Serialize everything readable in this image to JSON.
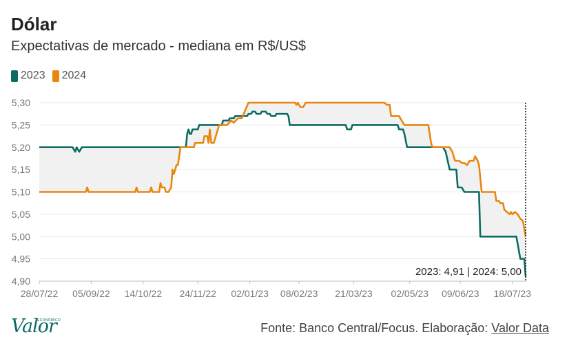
{
  "header": {
    "title": "Dólar",
    "subtitle": "Expectativas de mercado - mediana em R$/US$"
  },
  "legend": [
    {
      "label": "2023",
      "color": "#0c6b63"
    },
    {
      "label": "2024",
      "color": "#e8860e"
    }
  ],
  "footer": {
    "source_prefix": "Fonte: Banco Central/Focus. Elaboração: ",
    "source_link": "Valor Data",
    "logo_text": "Valor",
    "logo_sup": "ECONÔMICO"
  },
  "chart_data": {
    "type": "line",
    "title": "Dólar",
    "subtitle": "Expectativas de mercado - mediana em R$/US$",
    "xlabel": "",
    "ylabel": "",
    "ylim": [
      4.9,
      5.3
    ],
    "yticks": [
      "5,30",
      "5,25",
      "5,20",
      "5,15",
      "5,10",
      "5,05",
      "5,00",
      "4,95",
      "4,90"
    ],
    "xticks": [
      "28/07/22",
      "05/09/22",
      "14/10/22",
      "24/11/22",
      "02/01/23",
      "08/02/23",
      "21/03/23",
      "02/05/23",
      "09/06/23",
      "18/07/23"
    ],
    "grid": true,
    "legend_position": "top-left",
    "annotation": "2023: 4,91 | 2024: 5,00",
    "x_start": "2022-07-28",
    "x_end": "2023-07-28",
    "series": [
      {
        "name": "2023",
        "color": "#0c6b63",
        "points": [
          [
            "2022-07-28",
            5.2
          ],
          [
            "2022-08-22",
            5.2
          ],
          [
            "2022-08-24",
            5.19
          ],
          [
            "2022-08-25",
            5.2
          ],
          [
            "2022-08-27",
            5.19
          ],
          [
            "2022-08-29",
            5.2
          ],
          [
            "2022-11-15",
            5.2
          ],
          [
            "2022-11-16",
            5.23
          ],
          [
            "2022-11-17",
            5.24
          ],
          [
            "2022-11-18",
            5.23
          ],
          [
            "2022-11-19",
            5.23
          ],
          [
            "2022-11-20",
            5.24
          ],
          [
            "2022-11-24",
            5.24
          ],
          [
            "2022-11-25",
            5.25
          ],
          [
            "2022-12-12",
            5.25
          ],
          [
            "2022-12-13",
            5.26
          ],
          [
            "2022-12-17",
            5.26
          ],
          [
            "2022-12-18",
            5.265
          ],
          [
            "2022-12-21",
            5.265
          ],
          [
            "2022-12-22",
            5.27
          ],
          [
            "2022-12-31",
            5.27
          ],
          [
            "2023-01-01",
            5.275
          ],
          [
            "2023-01-03",
            5.275
          ],
          [
            "2023-01-04",
            5.28
          ],
          [
            "2023-01-06",
            5.28
          ],
          [
            "2023-01-07",
            5.275
          ],
          [
            "2023-01-10",
            5.275
          ],
          [
            "2023-01-11",
            5.28
          ],
          [
            "2023-01-14",
            5.28
          ],
          [
            "2023-01-15",
            5.275
          ],
          [
            "2023-01-17",
            5.275
          ],
          [
            "2023-01-18",
            5.27
          ],
          [
            "2023-01-21",
            5.27
          ],
          [
            "2023-01-22",
            5.275
          ],
          [
            "2023-01-30",
            5.275
          ],
          [
            "2023-01-31",
            5.27
          ],
          [
            "2023-02-01",
            5.25
          ],
          [
            "2023-03-15",
            5.25
          ],
          [
            "2023-03-16",
            5.24
          ],
          [
            "2023-03-19",
            5.24
          ],
          [
            "2023-03-20",
            5.25
          ],
          [
            "2023-04-23",
            5.25
          ],
          [
            "2023-04-24",
            5.24
          ],
          [
            "2023-04-27",
            5.24
          ],
          [
            "2023-04-28",
            5.23
          ],
          [
            "2023-04-30",
            5.2
          ],
          [
            "2023-05-27",
            5.2
          ],
          [
            "2023-05-29",
            5.19
          ],
          [
            "2023-06-01",
            5.15
          ],
          [
            "2023-06-06",
            5.15
          ],
          [
            "2023-06-07",
            5.11
          ],
          [
            "2023-06-10",
            5.11
          ],
          [
            "2023-06-12",
            5.1
          ],
          [
            "2023-06-23",
            5.1
          ],
          [
            "2023-06-24",
            5.0
          ],
          [
            "2023-07-21",
            5.0
          ],
          [
            "2023-07-24",
            4.95
          ],
          [
            "2023-07-27",
            4.95
          ],
          [
            "2023-07-28",
            4.91
          ]
        ]
      },
      {
        "name": "2024",
        "color": "#e8860e",
        "points": [
          [
            "2022-07-28",
            5.1
          ],
          [
            "2022-09-01",
            5.1
          ],
          [
            "2022-09-02",
            5.11
          ],
          [
            "2022-09-03",
            5.1
          ],
          [
            "2022-10-08",
            5.1
          ],
          [
            "2022-10-09",
            5.11
          ],
          [
            "2022-10-10",
            5.1
          ],
          [
            "2022-10-19",
            5.1
          ],
          [
            "2022-10-20",
            5.11
          ],
          [
            "2022-10-21",
            5.1
          ],
          [
            "2022-10-26",
            5.1
          ],
          [
            "2022-10-27",
            5.12
          ],
          [
            "2022-10-28",
            5.11
          ],
          [
            "2022-10-30",
            5.11
          ],
          [
            "2022-10-31",
            5.1
          ],
          [
            "2022-11-02",
            5.1
          ],
          [
            "2022-11-04",
            5.11
          ],
          [
            "2022-11-05",
            5.15
          ],
          [
            "2022-11-06",
            5.14
          ],
          [
            "2022-11-07",
            5.15
          ],
          [
            "2022-11-08",
            5.16
          ],
          [
            "2022-11-09",
            5.16
          ],
          [
            "2022-11-11",
            5.2
          ],
          [
            "2022-11-21",
            5.2
          ],
          [
            "2022-11-22",
            5.21
          ],
          [
            "2022-11-28",
            5.21
          ],
          [
            "2022-11-29",
            5.225
          ],
          [
            "2022-12-01",
            5.225
          ],
          [
            "2022-12-02",
            5.21
          ],
          [
            "2022-12-03",
            5.24
          ],
          [
            "2022-12-04",
            5.21
          ],
          [
            "2022-12-06",
            5.21
          ],
          [
            "2022-12-08",
            5.23
          ],
          [
            "2022-12-10",
            5.25
          ],
          [
            "2022-12-16",
            5.25
          ],
          [
            "2022-12-19",
            5.26
          ],
          [
            "2022-12-21",
            5.255
          ],
          [
            "2022-12-24",
            5.265
          ],
          [
            "2022-12-27",
            5.265
          ],
          [
            "2023-01-01",
            5.3
          ],
          [
            "2023-02-05",
            5.3
          ],
          [
            "2023-02-06",
            5.295
          ],
          [
            "2023-02-07",
            5.3
          ],
          [
            "2023-02-09",
            5.29
          ],
          [
            "2023-02-11",
            5.29
          ],
          [
            "2023-02-13",
            5.3
          ],
          [
            "2023-04-13",
            5.3
          ],
          [
            "2023-04-15",
            5.295
          ],
          [
            "2023-04-17",
            5.295
          ],
          [
            "2023-04-18",
            5.27
          ],
          [
            "2023-04-24",
            5.27
          ],
          [
            "2023-04-26",
            5.26
          ],
          [
            "2023-04-28",
            5.25
          ],
          [
            "2023-05-16",
            5.25
          ],
          [
            "2023-05-18",
            5.21
          ],
          [
            "2023-05-19",
            5.2
          ],
          [
            "2023-06-01",
            5.2
          ],
          [
            "2023-06-03",
            5.19
          ],
          [
            "2023-06-05",
            5.17
          ],
          [
            "2023-06-08",
            5.17
          ],
          [
            "2023-06-10",
            5.165
          ],
          [
            "2023-06-12",
            5.165
          ],
          [
            "2023-06-14",
            5.16
          ],
          [
            "2023-06-16",
            5.17
          ],
          [
            "2023-06-19",
            5.17
          ],
          [
            "2023-06-20",
            5.18
          ],
          [
            "2023-06-22",
            5.17
          ],
          [
            "2023-06-23",
            5.16
          ],
          [
            "2023-06-25",
            5.1
          ],
          [
            "2023-07-05",
            5.1
          ],
          [
            "2023-07-06",
            5.08
          ],
          [
            "2023-07-08",
            5.08
          ],
          [
            "2023-07-09",
            5.075
          ],
          [
            "2023-07-11",
            5.075
          ],
          [
            "2023-07-12",
            5.06
          ],
          [
            "2023-07-14",
            5.055
          ],
          [
            "2023-07-16",
            5.05
          ],
          [
            "2023-07-17",
            5.055
          ],
          [
            "2023-07-18",
            5.05
          ],
          [
            "2023-07-20",
            5.055
          ],
          [
            "2023-07-22",
            5.05
          ],
          [
            "2023-07-24",
            5.04
          ],
          [
            "2023-07-26",
            5.035
          ],
          [
            "2023-07-28",
            5.0
          ]
        ]
      }
    ]
  }
}
